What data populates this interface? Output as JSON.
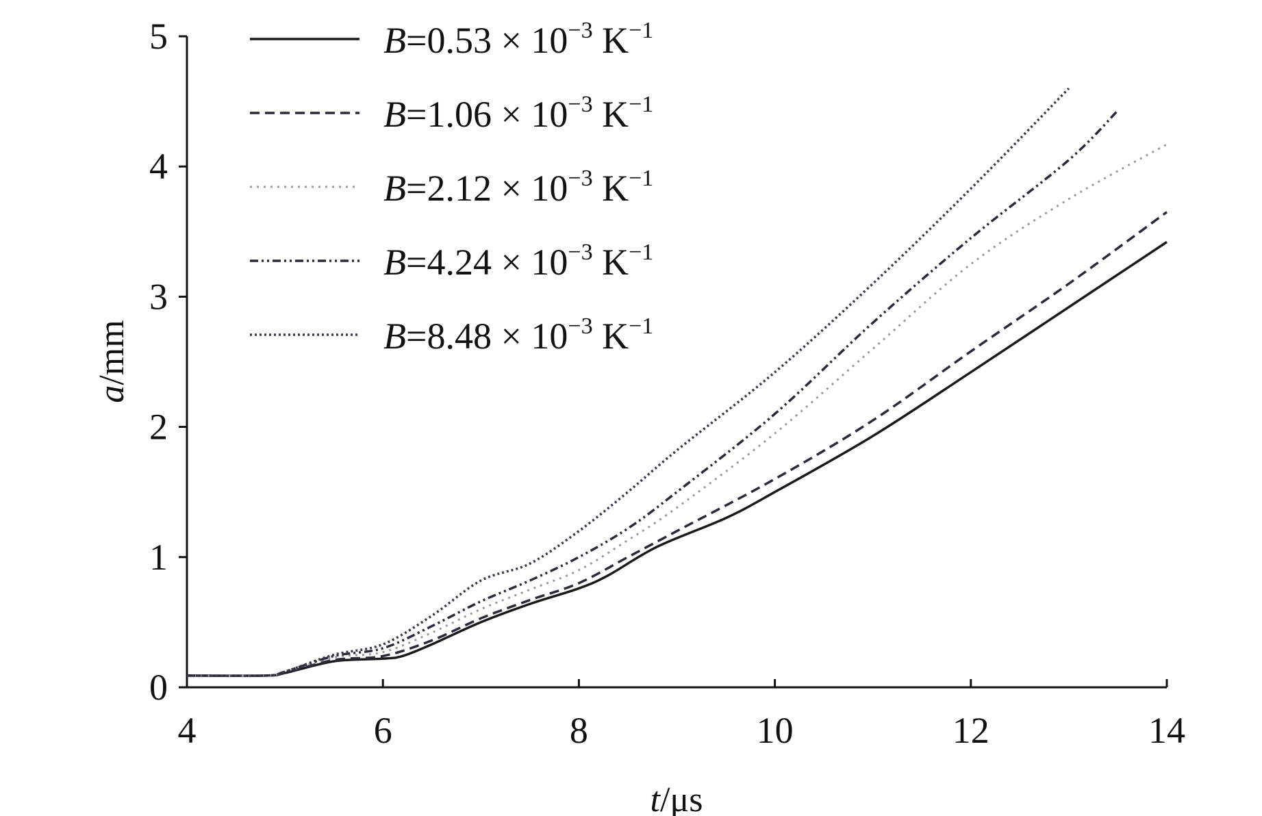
{
  "chart_data": {
    "type": "line",
    "title": "",
    "xlabel": "t/μs",
    "xlabel_var": "t",
    "xlabel_unit": "/μs",
    "ylabel": "a/mm",
    "ylabel_var": "a",
    "ylabel_unit": "/mm",
    "xlim": [
      4,
      14
    ],
    "ylim": [
      0,
      5
    ],
    "xticks": [
      4,
      6,
      8,
      10,
      12,
      14
    ],
    "yticks": [
      0,
      1,
      2,
      3,
      4,
      5
    ],
    "grid": false,
    "legend_position": "top-left",
    "series": [
      {
        "name": "B=0.53 × 10−3 K−1",
        "coef": "0.53",
        "style": "solid",
        "color": "#1a1a1a",
        "x": [
          4,
          4.8,
          5,
          5.5,
          6,
          6.2,
          6.5,
          7,
          7.5,
          8,
          8.3,
          8.8,
          9.5,
          10,
          11,
          12,
          13,
          14
        ],
        "y": [
          0.09,
          0.09,
          0.11,
          0.2,
          0.22,
          0.24,
          0.33,
          0.5,
          0.64,
          0.76,
          0.86,
          1.08,
          1.3,
          1.5,
          1.93,
          2.42,
          2.92,
          3.42
        ]
      },
      {
        "name": "B=1.06 × 10−3 K−1",
        "coef": "1.06",
        "style": "dashed",
        "color": "#2a2a3a",
        "x": [
          4,
          4.8,
          5,
          5.5,
          6,
          6.5,
          7,
          7.5,
          8,
          8.5,
          9,
          10,
          11,
          12,
          13,
          14
        ],
        "y": [
          0.09,
          0.09,
          0.11,
          0.21,
          0.24,
          0.36,
          0.53,
          0.67,
          0.8,
          1.0,
          1.2,
          1.6,
          2.05,
          2.58,
          3.1,
          3.65
        ]
      },
      {
        "name": "B=2.12 × 10−3 K−1",
        "coef": "2.12",
        "style": "dotted-light",
        "color": "#9a9a9a",
        "x": [
          4,
          4.8,
          5,
          5.5,
          6,
          6.5,
          7,
          7.5,
          8,
          8.5,
          9,
          10,
          11,
          12,
          13,
          14
        ],
        "y": [
          0.09,
          0.09,
          0.12,
          0.23,
          0.27,
          0.42,
          0.6,
          0.75,
          0.9,
          1.13,
          1.38,
          1.95,
          2.6,
          3.25,
          3.75,
          4.17
        ]
      },
      {
        "name": "B=4.24 × 10−3 K−1",
        "coef": "4.24",
        "style": "dash-dot-dot",
        "color": "#2a2a3a",
        "x": [
          4,
          4.8,
          5,
          5.5,
          6,
          6.5,
          7,
          7.5,
          8,
          8.5,
          9,
          10,
          11,
          12,
          13,
          13.5
        ],
        "y": [
          0.09,
          0.09,
          0.12,
          0.24,
          0.3,
          0.47,
          0.66,
          0.82,
          1.0,
          1.22,
          1.5,
          2.1,
          2.8,
          3.45,
          4.05,
          4.43
        ]
      },
      {
        "name": "B=8.48 × 10−3 K−1",
        "coef": "8.48",
        "style": "dotted-dark",
        "color": "#3a3a4a",
        "x": [
          4,
          4.8,
          5,
          5.5,
          6,
          6.5,
          7,
          7.5,
          8,
          8.5,
          9,
          10,
          11,
          12,
          13
        ],
        "y": [
          0.09,
          0.09,
          0.12,
          0.25,
          0.33,
          0.55,
          0.82,
          0.95,
          1.2,
          1.5,
          1.82,
          2.42,
          3.1,
          3.83,
          4.6
        ]
      }
    ]
  }
}
